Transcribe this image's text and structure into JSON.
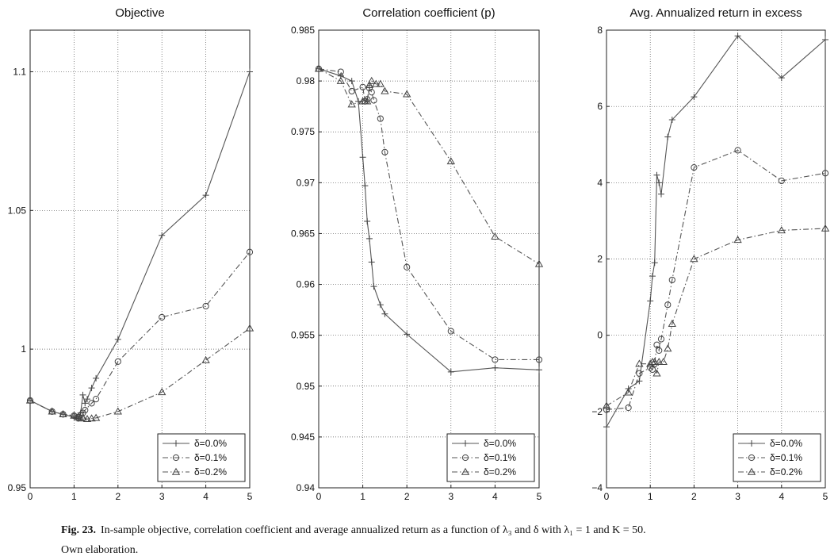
{
  "chart_data": [
    {
      "type": "line",
      "title": "Objective",
      "xlabel": "",
      "ylabel": "",
      "xlim": [
        0,
        5
      ],
      "ylim": [
        0.95,
        1.115
      ],
      "xticks": [
        "0",
        "1",
        "2",
        "3",
        "4",
        "5"
      ],
      "yticks": [
        {
          "value": 0.95,
          "label": "0.95"
        },
        {
          "value": 1.0,
          "label": "1"
        },
        {
          "value": 1.05,
          "label": "1.05"
        },
        {
          "value": 1.1,
          "label": "1.1"
        }
      ],
      "grid": true,
      "legend_position": "bottom-right",
      "series": [
        {
          "name": "δ=0.0%",
          "marker": "plus",
          "dash": "solid",
          "x": [
            0,
            0.5,
            0.75,
            1,
            1.05,
            1.1,
            1.15,
            1.2,
            1.25,
            1.3,
            1.4,
            1.5,
            2,
            3,
            4,
            5
          ],
          "y": [
            0.9815,
            0.9775,
            0.9765,
            0.9755,
            0.9752,
            0.975,
            0.977,
            0.9835,
            0.9805,
            0.982,
            0.986,
            0.9895,
            1.0035,
            1.041,
            1.0555,
            1.1
          ]
        },
        {
          "name": "δ=0.1%",
          "marker": "circle",
          "dash": "dashdot",
          "x": [
            0,
            0.5,
            0.75,
            1,
            1.1,
            1.15,
            1.2,
            1.25,
            1.4,
            1.5,
            2,
            3,
            4,
            5
          ],
          "y": [
            0.9815,
            0.9775,
            0.9765,
            0.976,
            0.9755,
            0.9762,
            0.977,
            0.978,
            0.9805,
            0.982,
            0.9955,
            1.0115,
            1.0155,
            1.035
          ]
        },
        {
          "name": "δ=0.2%",
          "marker": "triangle",
          "dash": "dashdot",
          "x": [
            0,
            0.5,
            0.75,
            1,
            1.1,
            1.15,
            1.2,
            1.3,
            1.4,
            1.5,
            2,
            3,
            4,
            5
          ],
          "y": [
            0.9815,
            0.9775,
            0.9765,
            0.976,
            0.9755,
            0.975,
            0.9753,
            0.9748,
            0.975,
            0.9752,
            0.9775,
            0.9845,
            0.996,
            1.0075
          ]
        }
      ]
    },
    {
      "type": "line",
      "title": "Correlation coefficient (p)",
      "xlabel": "",
      "ylabel": "",
      "xlim": [
        0,
        5
      ],
      "ylim": [
        0.94,
        0.985
      ],
      "xticks": [
        "0",
        "1",
        "2",
        "3",
        "4",
        "5"
      ],
      "yticks": [
        {
          "value": 0.94,
          "label": "0.94"
        },
        {
          "value": 0.945,
          "label": "0.945"
        },
        {
          "value": 0.95,
          "label": "0.95"
        },
        {
          "value": 0.955,
          "label": "0.955"
        },
        {
          "value": 0.96,
          "label": "0.96"
        },
        {
          "value": 0.965,
          "label": "0.965"
        },
        {
          "value": 0.97,
          "label": "0.97"
        },
        {
          "value": 0.975,
          "label": "0.975"
        },
        {
          "value": 0.98,
          "label": "0.98"
        },
        {
          "value": 0.985,
          "label": "0.985"
        }
      ],
      "grid": true,
      "legend_position": "bottom-right",
      "series": [
        {
          "name": "δ=0.0%",
          "marker": "plus",
          "dash": "solid",
          "x": [
            0,
            0.5,
            0.75,
            0.9,
            1,
            1.05,
            1.1,
            1.15,
            1.2,
            1.25,
            1.4,
            1.5,
            2,
            3,
            4,
            5
          ],
          "y": [
            0.9812,
            0.9805,
            0.98,
            0.978,
            0.9725,
            0.9697,
            0.9662,
            0.9645,
            0.9622,
            0.9598,
            0.958,
            0.9571,
            0.9551,
            0.9514,
            0.9518,
            0.9516
          ]
        },
        {
          "name": "δ=0.1%",
          "marker": "circle",
          "dash": "dashdot",
          "x": [
            0,
            0.5,
            0.75,
            1,
            1.05,
            1.1,
            1.15,
            1.2,
            1.25,
            1.4,
            1.5,
            2,
            3,
            4,
            5
          ],
          "y": [
            0.9812,
            0.9809,
            0.979,
            0.9794,
            0.978,
            0.9782,
            0.9793,
            0.9789,
            0.9781,
            0.9763,
            0.973,
            0.9617,
            0.9554,
            0.9526,
            0.9526
          ]
        },
        {
          "name": "δ=0.2%",
          "marker": "triangle",
          "dash": "dashdot",
          "x": [
            0,
            0.5,
            0.75,
            1,
            1.05,
            1.1,
            1.15,
            1.2,
            1.3,
            1.4,
            1.5,
            2,
            3,
            4,
            5
          ],
          "y": [
            0.9812,
            0.98,
            0.9777,
            0.978,
            0.978,
            0.978,
            0.9796,
            0.98,
            0.9797,
            0.9797,
            0.979,
            0.9787,
            0.9721,
            0.9647,
            0.962
          ]
        }
      ]
    },
    {
      "type": "line",
      "title": "Avg. Annualized return in excess",
      "xlabel": "",
      "ylabel": "",
      "xlim": [
        0,
        5
      ],
      "ylim": [
        -4,
        8
      ],
      "xticks": [
        "0",
        "1",
        "2",
        "3",
        "4",
        "5"
      ],
      "yticks": [
        {
          "value": -4,
          "label": "−4"
        },
        {
          "value": -2,
          "label": "−2"
        },
        {
          "value": 0,
          "label": "0"
        },
        {
          "value": 2,
          "label": "2"
        },
        {
          "value": 4,
          "label": "4"
        },
        {
          "value": 6,
          "label": "6"
        },
        {
          "value": 8,
          "label": "8"
        }
      ],
      "grid": true,
      "legend_position": "bottom-right",
      "series": [
        {
          "name": "δ=0.0%",
          "marker": "plus",
          "dash": "solid",
          "x": [
            0,
            0.5,
            0.75,
            1,
            1.05,
            1.1,
            1.15,
            1.2,
            1.25,
            1.4,
            1.5,
            2,
            3,
            4,
            5
          ],
          "y": [
            -2.4,
            -1.4,
            -1.2,
            0.9,
            1.55,
            1.9,
            4.2,
            4.0,
            3.7,
            5.2,
            5.65,
            6.25,
            7.85,
            6.75,
            7.75
          ]
        },
        {
          "name": "δ=0.1%",
          "marker": "circle",
          "dash": "dashdot",
          "x": [
            0,
            0.5,
            0.75,
            1,
            1.05,
            1.1,
            1.15,
            1.2,
            1.25,
            1.4,
            1.5,
            2,
            3,
            4,
            5
          ],
          "y": [
            -1.95,
            -1.9,
            -1.0,
            -0.85,
            -0.9,
            -0.75,
            -0.25,
            -0.4,
            -0.1,
            0.8,
            1.45,
            4.4,
            4.85,
            4.05,
            4.25
          ]
        },
        {
          "name": "δ=0.2%",
          "marker": "triangle",
          "dash": "dashdot",
          "x": [
            0,
            0.5,
            0.75,
            1,
            1.05,
            1.1,
            1.15,
            1.2,
            1.3,
            1.4,
            1.5,
            2,
            3,
            4,
            5
          ],
          "y": [
            -1.85,
            -1.5,
            -0.75,
            -0.75,
            -0.7,
            -0.7,
            -1.0,
            -0.7,
            -0.7,
            -0.35,
            0.3,
            2.0,
            2.5,
            2.75,
            2.8
          ]
        }
      ]
    }
  ],
  "caption": {
    "figure_number": "Fig. 23.",
    "text": "In-sample objective, correlation coefficient and average annualized return as a function of λ₃ and δ with λ₁ = 1 and K = 50.",
    "credit": "Own elaboration."
  }
}
